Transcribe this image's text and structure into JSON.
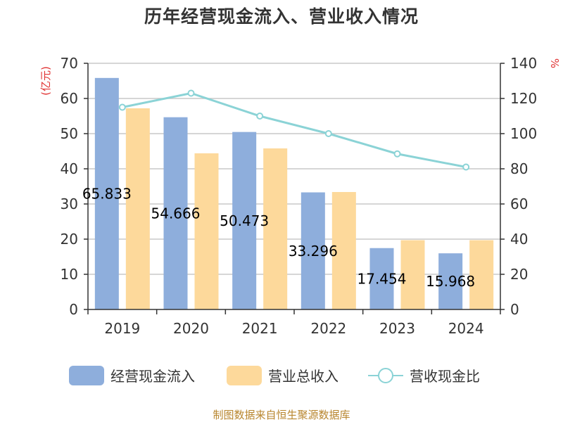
{
  "chart_data": {
    "type": "bar",
    "title": "历年经营现金流入、营业收入情况",
    "categories": [
      "2019",
      "2020",
      "2021",
      "2022",
      "2023",
      "2024"
    ],
    "series": [
      {
        "name": "经营现金流入",
        "type": "bar",
        "axis": "left",
        "color": "#8eaedc",
        "values": [
          65.833,
          54.666,
          50.473,
          33.296,
          17.454,
          15.968
        ],
        "labels": [
          "65.833",
          "54.666",
          "50.473",
          "33.296",
          "17.454",
          "15.968"
        ]
      },
      {
        "name": "营业总收入",
        "type": "bar",
        "axis": "left",
        "color": "#fdd99b",
        "values": [
          57.2,
          44.4,
          45.8,
          33.4,
          19.7,
          19.7
        ]
      },
      {
        "name": "营收现金比",
        "type": "line",
        "axis": "right",
        "color": "#8bd3d6",
        "values": [
          115,
          123,
          110,
          100,
          88.5,
          81
        ]
      }
    ],
    "left_axis": {
      "unit": "(亿元)",
      "ylim": [
        0,
        70
      ],
      "ticks": [
        "0",
        "10",
        "20",
        "30",
        "40",
        "50",
        "60",
        "70"
      ]
    },
    "right_axis": {
      "unit": "%",
      "ylim": [
        0,
        140
      ],
      "ticks": [
        "0",
        "20",
        "40",
        "60",
        "80",
        "100",
        "120",
        "140"
      ]
    },
    "grid": true,
    "legend_position": "bottom"
  },
  "footer": "制图数据来自恒生聚源数据库"
}
